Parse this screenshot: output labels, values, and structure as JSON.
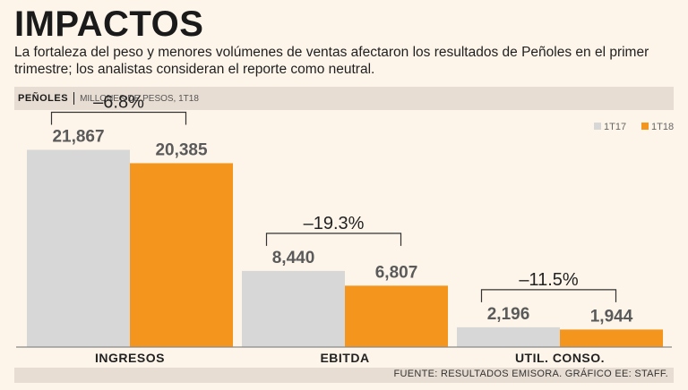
{
  "header": {
    "title": "IMPACTOS",
    "subtitle": "La fortaleza del peso y menores volúmenes de ventas afectaron los resultados de Peñoles en el primer trimestre; los analistas consideran el reporte como neutral.",
    "company": "PEÑOLES",
    "units": "MILLONES DE PESOS, 1T18"
  },
  "footer": {
    "source": "FUENTE: RESULTADOS EMISORA. GRÁFICO EE: STAFF."
  },
  "colors": {
    "series_1T17": "#d7d7d7",
    "series_1T18": "#f4961e",
    "bracket": "#333333"
  },
  "chart_data": {
    "type": "bar",
    "title": "IMPACTOS",
    "ylabel": "Millones de pesos",
    "categories": [
      "INGRESOS",
      "EBITDA",
      "UTIL. CONSO."
    ],
    "series": [
      {
        "name": "1T17",
        "values": [
          21867,
          8440,
          2196
        ],
        "labels": [
          "21,867",
          "8,440",
          "2,196"
        ]
      },
      {
        "name": "1T18",
        "values": [
          20385,
          6807,
          1944
        ],
        "labels": [
          "20,385",
          "6,807",
          "1,944"
        ]
      }
    ],
    "changes": [
      "–6.8%",
      "–19.3%",
      "–11.5%"
    ],
    "ylim": [
      0,
      24000
    ],
    "legend": "top-right",
    "grid": false
  }
}
